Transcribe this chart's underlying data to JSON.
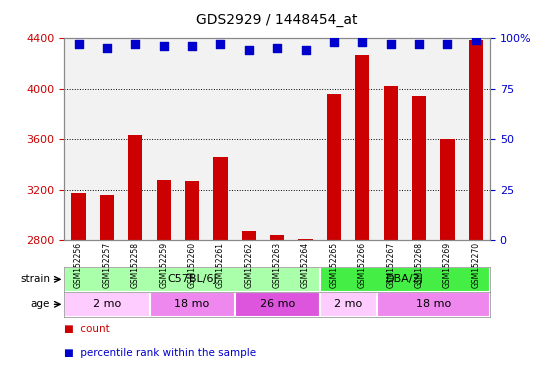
{
  "title": "GDS2929 / 1448454_at",
  "samples": [
    "GSM152256",
    "GSM152257",
    "GSM152258",
    "GSM152259",
    "GSM152260",
    "GSM152261",
    "GSM152262",
    "GSM152263",
    "GSM152264",
    "GSM152265",
    "GSM152266",
    "GSM152267",
    "GSM152268",
    "GSM152269",
    "GSM152270"
  ],
  "counts": [
    3170,
    3160,
    3630,
    3280,
    3270,
    3460,
    2870,
    2840,
    2810,
    3960,
    4270,
    4020,
    3940,
    3600,
    4390
  ],
  "percentiles": [
    97,
    95,
    97,
    96,
    96,
    97,
    94,
    95,
    94,
    98,
    98,
    97,
    97,
    97,
    99
  ],
  "bar_color": "#cc0000",
  "dot_color": "#0000cc",
  "ylim_left": [
    2800,
    4400
  ],
  "ylim_right": [
    0,
    100
  ],
  "yticks_left": [
    2800,
    3200,
    3600,
    4000,
    4400
  ],
  "yticks_right": [
    0,
    25,
    50,
    75,
    100
  ],
  "strain_groups": [
    {
      "label": "C57BL/6J",
      "start": 0,
      "end": 9,
      "color": "#aaffaa"
    },
    {
      "label": "DBA/2J",
      "start": 9,
      "end": 15,
      "color": "#44ee44"
    }
  ],
  "age_groups": [
    {
      "label": "2 mo",
      "start": 0,
      "end": 3,
      "color": "#ffccff"
    },
    {
      "label": "18 mo",
      "start": 3,
      "end": 6,
      "color": "#ee88ee"
    },
    {
      "label": "26 mo",
      "start": 6,
      "end": 9,
      "color": "#dd55dd"
    },
    {
      "label": "2 mo",
      "start": 9,
      "end": 11,
      "color": "#ffccff"
    },
    {
      "label": "18 mo",
      "start": 11,
      "end": 15,
      "color": "#ee88ee"
    }
  ],
  "dot_size": 30,
  "bar_width": 0.5,
  "grid_color": "#000000",
  "bg_color": "#f2f2f2",
  "label_color_left": "#cc0000",
  "label_color_right": "#0000cc"
}
